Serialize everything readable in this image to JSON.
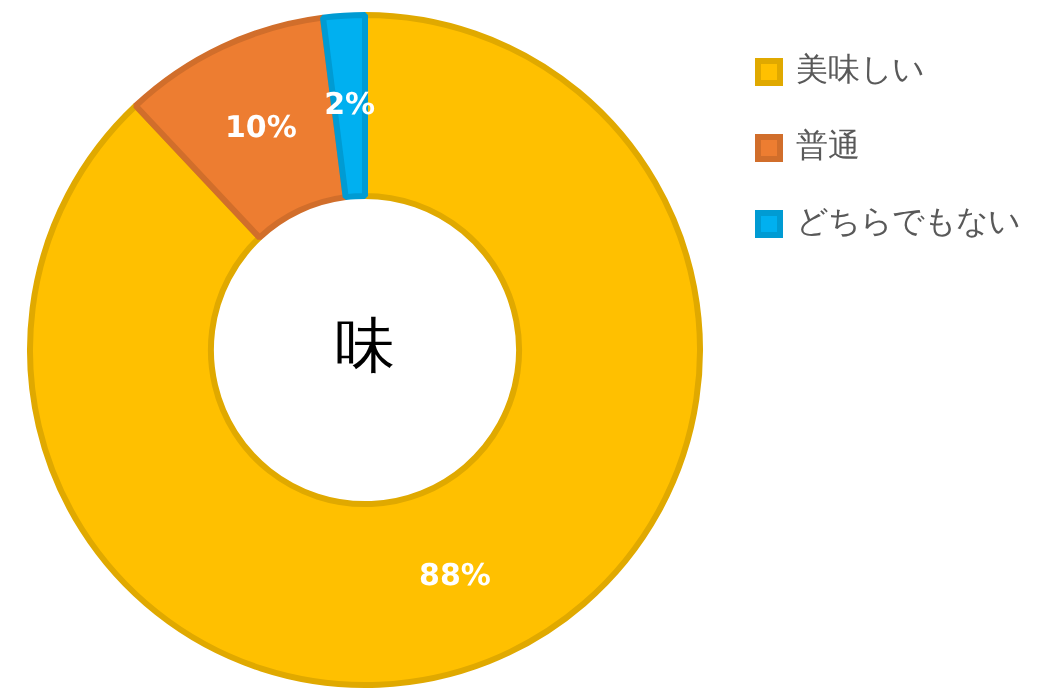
{
  "chart_data": {
    "type": "donut",
    "title": "味",
    "categories": [
      "美味しい",
      "普通",
      "どちらでもない"
    ],
    "values": [
      88,
      10,
      2
    ],
    "colors": [
      "#ffc000",
      "#ed7d31",
      "#00b0f0"
    ],
    "value_labels": [
      "88%",
      "10%",
      "2%"
    ],
    "legend": "right"
  }
}
